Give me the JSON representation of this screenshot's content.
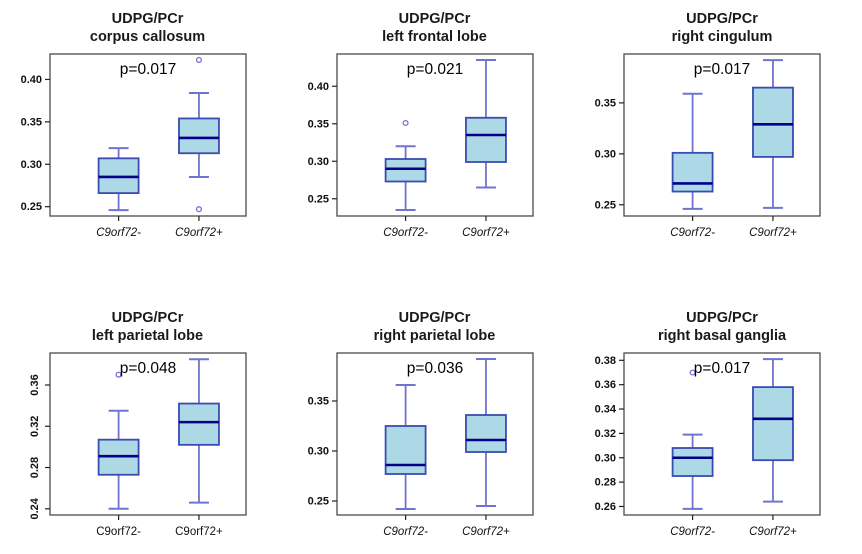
{
  "figure": {
    "group_labels": [
      "C9orf72-",
      "C9orf72+"
    ],
    "measure": "UDPG/PCr"
  },
  "colors": {
    "box_fill": "#ADD8E6",
    "box_border": "#3A4CB1",
    "median": "#00008B",
    "whisker": "#7173D1",
    "frame": "#4a4a4a",
    "tick": "#222222"
  },
  "chart_data": [
    {
      "type": "boxplot",
      "title_line1": "UDPG/PCr",
      "title_line2": "corpus callosum",
      "p_label": "p=0.017",
      "ylim": [
        0.239,
        0.43
      ],
      "yticks": [
        0.25,
        0.3,
        0.35,
        0.4
      ],
      "ytick_labels": [
        "0.25",
        "0.30",
        "0.35",
        "0.40"
      ],
      "ytick_rotated": false,
      "xlabel_italic": true,
      "categories": [
        "C9orf72-",
        "C9orf72+"
      ],
      "boxes": [
        {
          "low": 0.246,
          "q1": 0.266,
          "median": 0.285,
          "q3": 0.307,
          "high": 0.319,
          "outliers": []
        },
        {
          "low": 0.285,
          "q1": 0.313,
          "median": 0.331,
          "q3": 0.354,
          "high": 0.384,
          "outliers": [
            0.247,
            0.423
          ]
        }
      ]
    },
    {
      "type": "boxplot",
      "title_line1": "UDPG/PCr",
      "title_line2": "left frontal lobe",
      "p_label": "p=0.021",
      "ylim": [
        0.227,
        0.443
      ],
      "yticks": [
        0.25,
        0.3,
        0.35,
        0.4
      ],
      "ytick_labels": [
        "0.25",
        "0.30",
        "0.35",
        "0.40"
      ],
      "ytick_rotated": false,
      "xlabel_italic": true,
      "categories": [
        "C9orf72-",
        "C9orf72+"
      ],
      "boxes": [
        {
          "low": 0.235,
          "q1": 0.273,
          "median": 0.29,
          "q3": 0.303,
          "high": 0.32,
          "outliers": [
            0.351
          ]
        },
        {
          "low": 0.265,
          "q1": 0.299,
          "median": 0.335,
          "q3": 0.358,
          "high": 0.435,
          "outliers": []
        }
      ]
    },
    {
      "type": "boxplot",
      "title_line1": "UDPG/PCr",
      "title_line2": "right cingulum",
      "p_label": "p=0.017",
      "ylim": [
        0.239,
        0.398
      ],
      "yticks": [
        0.25,
        0.3,
        0.35
      ],
      "ytick_labels": [
        "0.25",
        "0.30",
        "0.35"
      ],
      "ytick_rotated": false,
      "xlabel_italic": true,
      "categories": [
        "C9orf72-",
        "C9orf72+"
      ],
      "boxes": [
        {
          "low": 0.246,
          "q1": 0.263,
          "median": 0.271,
          "q3": 0.301,
          "high": 0.359,
          "outliers": []
        },
        {
          "low": 0.247,
          "q1": 0.297,
          "median": 0.329,
          "q3": 0.365,
          "high": 0.392,
          "outliers": []
        }
      ]
    },
    {
      "type": "boxplot",
      "title_line1": "UDPG/PCr",
      "title_line2": "left parietal lobe",
      "p_label": "p=0.048",
      "ylim": [
        0.234,
        0.391
      ],
      "yticks": [
        0.24,
        0.28,
        0.32,
        0.36
      ],
      "ytick_labels": [
        "0.24",
        "0.28",
        "0.32",
        "0.36"
      ],
      "ytick_rotated": true,
      "xlabel_italic": false,
      "categories": [
        "C9orf72-",
        "C9orf72+"
      ],
      "boxes": [
        {
          "low": 0.24,
          "q1": 0.273,
          "median": 0.291,
          "q3": 0.307,
          "high": 0.335,
          "outliers": [
            0.37
          ]
        },
        {
          "low": 0.246,
          "q1": 0.302,
          "median": 0.324,
          "q3": 0.342,
          "high": 0.385,
          "outliers": []
        }
      ]
    },
    {
      "type": "boxplot",
      "title_line1": "UDPG/PCr",
      "title_line2": "right parietal lobe",
      "p_label": "p=0.036",
      "ylim": [
        0.236,
        0.398
      ],
      "yticks": [
        0.25,
        0.3,
        0.35
      ],
      "ytick_labels": [
        "0.25",
        "0.30",
        "0.35"
      ],
      "ytick_rotated": false,
      "xlabel_italic": true,
      "categories": [
        "C9orf72-",
        "C9orf72+"
      ],
      "boxes": [
        {
          "low": 0.242,
          "q1": 0.277,
          "median": 0.286,
          "q3": 0.325,
          "high": 0.366,
          "outliers": []
        },
        {
          "low": 0.245,
          "q1": 0.299,
          "median": 0.311,
          "q3": 0.336,
          "high": 0.392,
          "outliers": []
        }
      ]
    },
    {
      "type": "boxplot",
      "title_line1": "UDPG/PCr",
      "title_line2": "right basal ganglia",
      "p_label": "p=0.017",
      "ylim": [
        0.253,
        0.386
      ],
      "yticks": [
        0.26,
        0.28,
        0.3,
        0.32,
        0.34,
        0.36,
        0.38
      ],
      "ytick_labels": [
        "0.26",
        "0.28",
        "0.30",
        "0.32",
        "0.34",
        "0.36",
        "0.38"
      ],
      "ytick_rotated": false,
      "xlabel_italic": true,
      "categories": [
        "C9orf72-",
        "C9orf72+"
      ],
      "boxes": [
        {
          "low": 0.258,
          "q1": 0.285,
          "median": 0.3,
          "q3": 0.308,
          "high": 0.319,
          "outliers": [
            0.37
          ]
        },
        {
          "low": 0.264,
          "q1": 0.298,
          "median": 0.332,
          "q3": 0.358,
          "high": 0.381,
          "outliers": []
        }
      ]
    }
  ]
}
